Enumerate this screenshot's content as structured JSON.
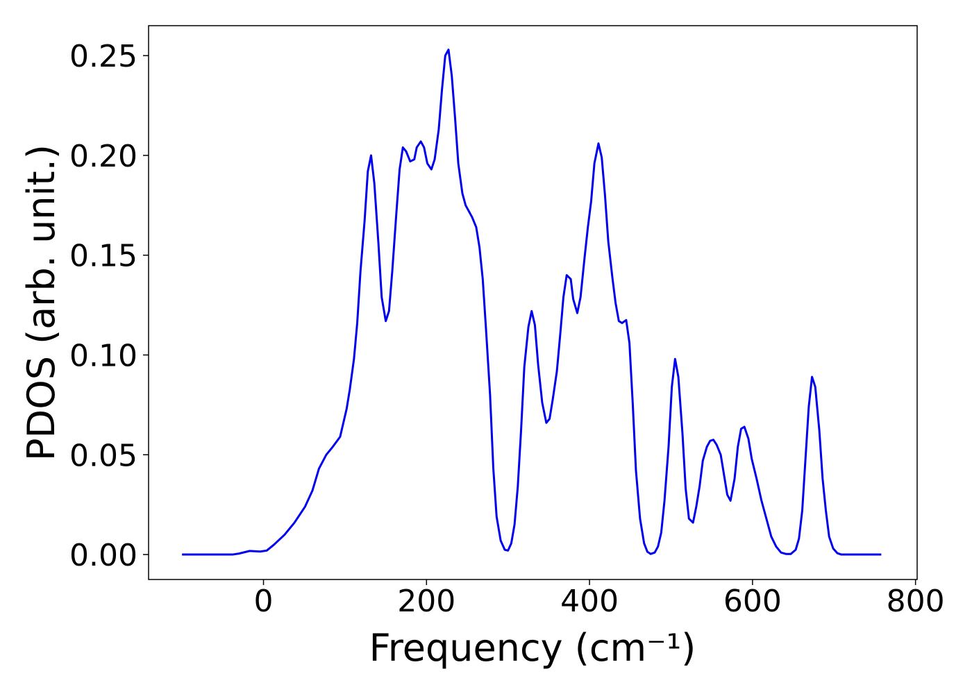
{
  "chart_data": {
    "type": "line",
    "xlabel": "Frequency (cm⁻¹)",
    "ylabel": "PDOS (arb. unit.)",
    "xlim": [
      -141,
      802
    ],
    "ylim": [
      -0.0125,
      0.265
    ],
    "xticks": [
      0,
      200,
      400,
      600,
      800
    ],
    "yticks": [
      {
        "value": 0,
        "label": "0.00"
      },
      0.05,
      {
        "value": 0.1,
        "label": "0.10"
      },
      0.15,
      {
        "value": 0.2,
        "label": "0.20"
      },
      0.25
    ],
    "x": [
      -100,
      -38,
      -30,
      -17,
      -4,
      4,
      13,
      26,
      38,
      51,
      60,
      68,
      77,
      85,
      94,
      98,
      102,
      106,
      111,
      115,
      119,
      124,
      128,
      132,
      136,
      141,
      145,
      150,
      154,
      158,
      163,
      167,
      171,
      175,
      180,
      185,
      188,
      193,
      197,
      201,
      206,
      210,
      215,
      219,
      223,
      227,
      231,
      235,
      239,
      244,
      248,
      252,
      256,
      261,
      265,
      269,
      273,
      278,
      282,
      286,
      291,
      296,
      300,
      304,
      308,
      312,
      316,
      320,
      325,
      329,
      333,
      337,
      342,
      347,
      351,
      355,
      360,
      364,
      368,
      372,
      377,
      380,
      385,
      389,
      394,
      398,
      402,
      406,
      411,
      415,
      419,
      423,
      428,
      432,
      436,
      440,
      445,
      449,
      453,
      457,
      462,
      467,
      471,
      475,
      480,
      484,
      488,
      492,
      497,
      501,
      505,
      509,
      514,
      518,
      522,
      527,
      531,
      535,
      539,
      544,
      548,
      552,
      556,
      561,
      565,
      569,
      573,
      578,
      582,
      586,
      590,
      595,
      599,
      605,
      611,
      617,
      623,
      629,
      635,
      641,
      647,
      653,
      657,
      661,
      665,
      669,
      673,
      677,
      682,
      686,
      690,
      694,
      699,
      704,
      709,
      758
    ],
    "series": [
      {
        "name": "PDOS",
        "color": "#0000ee",
        "values": [
          0,
          0,
          0.0005,
          0.0018,
          0.0015,
          0.002,
          0.005,
          0.01,
          0.016,
          0.024,
          0.032,
          0.043,
          0.05,
          0.054,
          0.059,
          0.066,
          0.073,
          0.083,
          0.098,
          0.116,
          0.142,
          0.167,
          0.192,
          0.2,
          0.186,
          0.156,
          0.129,
          0.117,
          0.122,
          0.142,
          0.171,
          0.193,
          0.204,
          0.202,
          0.197,
          0.198,
          0.204,
          0.207,
          0.204,
          0.196,
          0.193,
          0.198,
          0.213,
          0.233,
          0.25,
          0.253,
          0.24,
          0.219,
          0.196,
          0.181,
          0.175,
          0.172,
          0.169,
          0.164,
          0.154,
          0.138,
          0.113,
          0.08,
          0.043,
          0.019,
          0.007,
          0.0024,
          0.002,
          0.0056,
          0.015,
          0.034,
          0.062,
          0.094,
          0.114,
          0.122,
          0.115,
          0.095,
          0.076,
          0.066,
          0.068,
          0.078,
          0.092,
          0.11,
          0.129,
          0.14,
          0.138,
          0.128,
          0.121,
          0.129,
          0.149,
          0.164,
          0.177,
          0.196,
          0.206,
          0.199,
          0.18,
          0.157,
          0.139,
          0.126,
          0.117,
          0.116,
          0.1175,
          0.106,
          0.076,
          0.042,
          0.018,
          0.0056,
          0.0014,
          0.0003,
          0.001,
          0.004,
          0.011,
          0.027,
          0.054,
          0.084,
          0.098,
          0.089,
          0.061,
          0.033,
          0.018,
          0.016,
          0.024,
          0.034,
          0.047,
          0.054,
          0.057,
          0.0575,
          0.055,
          0.05,
          0.04,
          0.03,
          0.027,
          0.038,
          0.054,
          0.063,
          0.064,
          0.058,
          0.048,
          0.038,
          0.027,
          0.018,
          0.009,
          0.004,
          0.001,
          0.0003,
          0.0003,
          0.0024,
          0.008,
          0.022,
          0.048,
          0.074,
          0.089,
          0.084,
          0.062,
          0.038,
          0.022,
          0.009,
          0.003,
          0.0007,
          0,
          0
        ]
      }
    ]
  }
}
